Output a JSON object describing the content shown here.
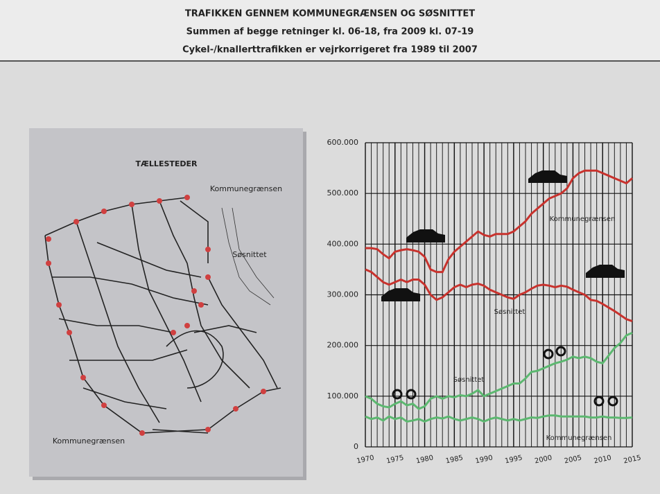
{
  "header": {
    "title": "TRAFIKKEN GENNEM KOMMUNEGRÆNSEN OG SØSNITTET",
    "lines": [
      "Summen af begge retninger kl. 06-18, fra 2009 kl. 07-19",
      "Cykel-/knallerttrafikken er vejrkorrigeret fra 1989 til 2007"
    ]
  },
  "map": {
    "title": "TÆLLESTEDER",
    "labels": [
      "Kommunegrænsen",
      "Søsnittet",
      "Kommunegrænsen"
    ]
  },
  "chart_data": {
    "type": "line",
    "x": [
      1970,
      1971,
      1972,
      1973,
      1974,
      1975,
      1976,
      1977,
      1978,
      1979,
      1980,
      1981,
      1982,
      1983,
      1984,
      1985,
      1986,
      1987,
      1988,
      1989,
      1990,
      1991,
      1992,
      1993,
      1994,
      1995,
      1996,
      1997,
      1998,
      1999,
      2000,
      2001,
      2002,
      2003,
      2004,
      2005,
      2006,
      2007,
      2008,
      2009,
      2010,
      2011,
      2012,
      2013,
      2014,
      2015
    ],
    "series": [
      {
        "name": "Kommunegrænsen",
        "color": "#c8322d",
        "values": [
          392000,
          392000,
          390000,
          380000,
          372000,
          385000,
          388000,
          390000,
          388000,
          385000,
          375000,
          350000,
          345000,
          345000,
          370000,
          385000,
          395000,
          405000,
          415000,
          425000,
          418000,
          415000,
          420000,
          420000,
          420000,
          425000,
          435000,
          445000,
          460000,
          470000,
          480000,
          490000,
          495000,
          500000,
          510000,
          530000,
          540000,
          545000,
          545000,
          545000,
          540000,
          535000,
          530000,
          525000,
          520000,
          530000
        ]
      },
      {
        "name": "Søsnittet",
        "color": "#c8322d",
        "values": [
          350000,
          345000,
          335000,
          325000,
          320000,
          325000,
          330000,
          325000,
          330000,
          330000,
          320000,
          300000,
          290000,
          295000,
          305000,
          315000,
          320000,
          315000,
          320000,
          322000,
          318000,
          310000,
          305000,
          300000,
          295000,
          292000,
          300000,
          305000,
          312000,
          318000,
          320000,
          318000,
          315000,
          318000,
          316000,
          310000,
          305000,
          300000,
          290000,
          288000,
          282000,
          275000,
          268000,
          260000,
          252000,
          248000
        ]
      },
      {
        "name": "Søsnittet",
        "color": "#5cb870",
        "values": [
          100000,
          95000,
          85000,
          80000,
          78000,
          85000,
          90000,
          82000,
          85000,
          75000,
          80000,
          95000,
          100000,
          95000,
          100000,
          98000,
          102000,
          100000,
          105000,
          112000,
          100000,
          105000,
          110000,
          115000,
          120000,
          125000,
          125000,
          135000,
          148000,
          150000,
          155000,
          160000,
          165000,
          168000,
          172000,
          178000,
          175000,
          178000,
          175000,
          168000,
          165000,
          180000,
          195000,
          205000,
          220000,
          225000
        ]
      },
      {
        "name": "Kommunegrænsen",
        "color": "#5cb870",
        "values": [
          60000,
          55000,
          58000,
          52000,
          60000,
          55000,
          58000,
          50000,
          52000,
          55000,
          50000,
          55000,
          58000,
          56000,
          60000,
          55000,
          52000,
          55000,
          58000,
          55000,
          50000,
          55000,
          58000,
          55000,
          52000,
          55000,
          52000,
          55000,
          58000,
          57000,
          60000,
          62000,
          62000,
          60000,
          60000,
          60000,
          60000,
          60000,
          58000,
          58000,
          60000,
          58000,
          58000,
          57000,
          57000,
          58000
        ]
      }
    ],
    "xlim": [
      1970,
      2015
    ],
    "xticks": [
      1970,
      1975,
      1980,
      1985,
      1990,
      1995,
      2000,
      2005,
      2010,
      2015
    ],
    "ylim": [
      0,
      600000
    ],
    "yticks": [
      0,
      {
        "value": 100000,
        "label": "100.000"
      },
      {
        "value": 200000,
        "label": "200.000"
      },
      {
        "value": 300000,
        "label": "300.000"
      },
      {
        "value": 400000,
        "label": "400.000"
      },
      {
        "value": 500000,
        "label": "500.000"
      },
      {
        "value": 600000,
        "label": "600.000"
      }
    ],
    "grid": true
  }
}
